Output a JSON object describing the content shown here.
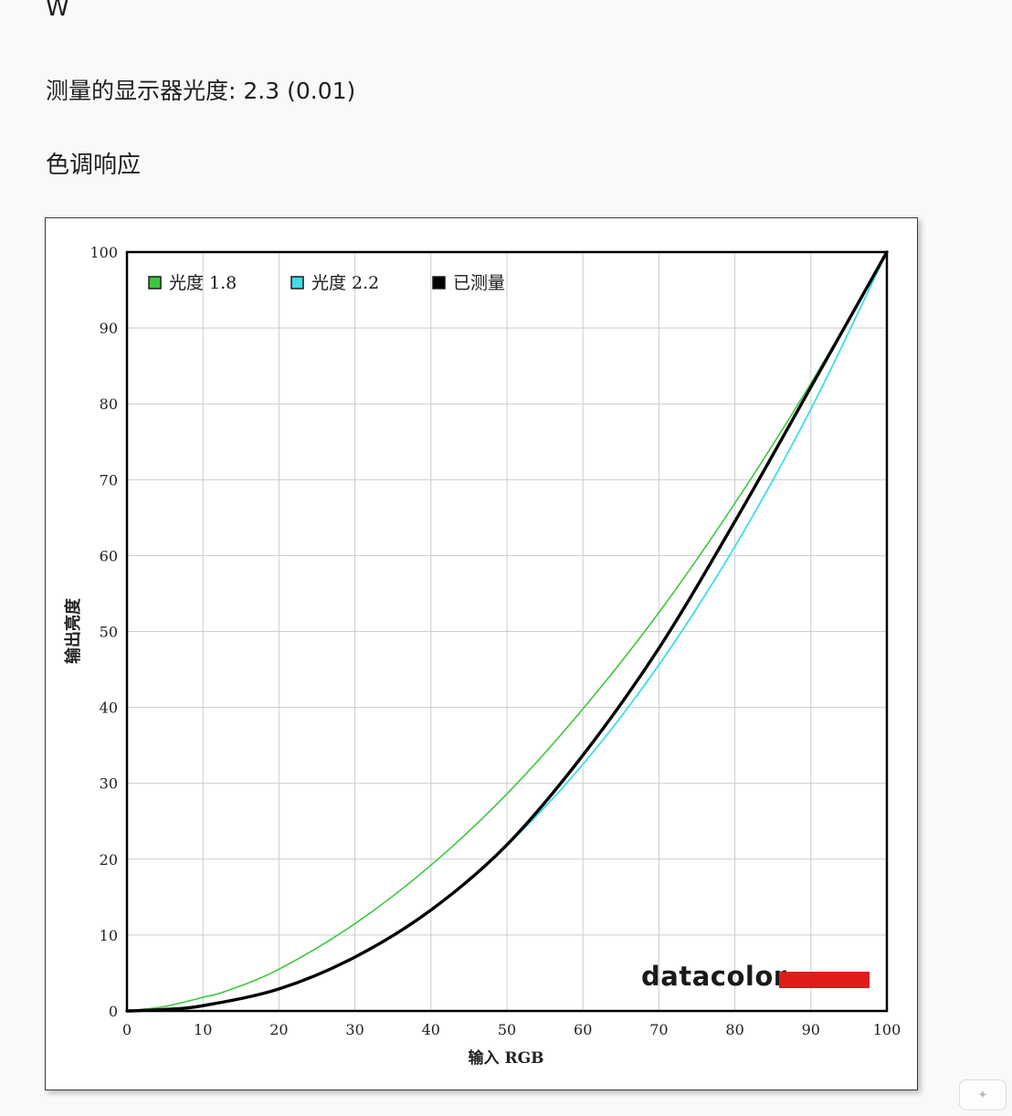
{
  "page": {
    "top_letter": "W",
    "gamma_label": "测量的显示器光度:",
    "gamma_value": "2.3 (0.01)",
    "section_title": "色调响应"
  },
  "chart_data": {
    "type": "line",
    "xlabel": "输入 RGB",
    "ylabel": "输出亮度",
    "xlim": [
      0,
      100
    ],
    "ylim": [
      0,
      100
    ],
    "xticks": [
      0,
      10,
      20,
      30,
      40,
      50,
      60,
      70,
      80,
      90,
      100
    ],
    "yticks": [
      0,
      10,
      20,
      30,
      40,
      50,
      60,
      70,
      80,
      90,
      100
    ],
    "grid": true,
    "legend_position": "top-left",
    "brand_logo": "datacolor",
    "series": [
      {
        "name": "光度 1.8",
        "color": "#3cc83c",
        "x": [
          0,
          5,
          10,
          13,
          20,
          30,
          40,
          50,
          60,
          70,
          80,
          90,
          100
        ],
        "y": [
          0,
          0.6,
          1.8,
          2.6,
          5.5,
          11.5,
          19.2,
          28.6,
          39.8,
          52.5,
          66.9,
          82.7,
          100
        ]
      },
      {
        "name": "光度 2.2",
        "color": "#3fdde8",
        "x": [
          0,
          5,
          10,
          20,
          30,
          40,
          50,
          60,
          70,
          80,
          90,
          100
        ],
        "y": [
          0,
          0.1,
          0.6,
          2.9,
          7.1,
          13.3,
          21.8,
          32.5,
          45.6,
          61.2,
          79.3,
          100
        ]
      },
      {
        "name": "已测量",
        "color": "#000000",
        "x": [
          0,
          5,
          10,
          20,
          30,
          40,
          50,
          60,
          70,
          80,
          90,
          100
        ],
        "y": [
          0,
          0.2,
          0.7,
          2.9,
          7.1,
          13.3,
          21.9,
          33.7,
          47.8,
          64.5,
          82.2,
          100
        ]
      }
    ]
  }
}
